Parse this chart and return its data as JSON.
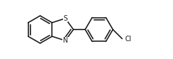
{
  "bg_color": "#ffffff",
  "line_color": "#1a1a1a",
  "line_width": 1.2,
  "figsize": [
    2.5,
    0.86
  ],
  "dpi": 100,
  "S_label": "S",
  "N_label": "N",
  "Cl_label": "Cl",
  "label_fontsize": 7.0,
  "label_color": "#1a1a1a",
  "label_bg": "white"
}
